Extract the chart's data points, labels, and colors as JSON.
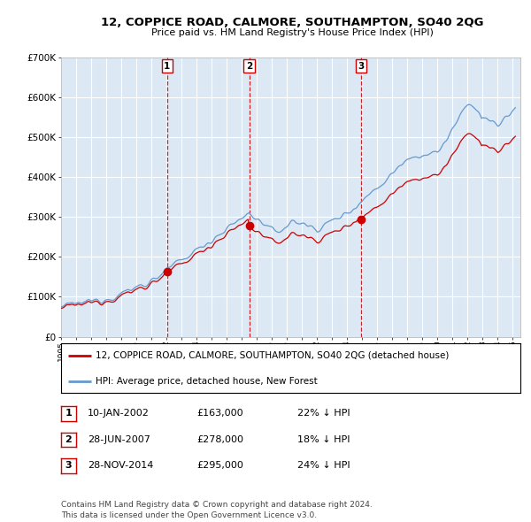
{
  "title": "12, COPPICE ROAD, CALMORE, SOUTHAMPTON, SO40 2QG",
  "subtitle": "Price paid vs. HM Land Registry's House Price Index (HPI)",
  "background_color": "#ffffff",
  "plot_bg_color": "#dce9f5",
  "grid_color": "#ffffff",
  "ylim": [
    0,
    700000
  ],
  "yticks": [
    0,
    100000,
    200000,
    300000,
    400000,
    500000,
    600000,
    700000
  ],
  "ytick_labels": [
    "£0",
    "£100K",
    "£200K",
    "£300K",
    "£400K",
    "£500K",
    "£600K",
    "£700K"
  ],
  "xlim_start": 1995.0,
  "xlim_end": 2025.5,
  "hpi_color": "#6699cc",
  "price_color": "#cc0000",
  "vline_color": "#cc0000",
  "transactions": [
    {
      "num": 1,
      "date_num": 2002.04,
      "price": 163000,
      "date_str": "10-JAN-2002",
      "price_str": "£163,000",
      "pct_str": "22% ↓ HPI"
    },
    {
      "num": 2,
      "date_num": 2007.49,
      "price": 278000,
      "date_str": "28-JUN-2007",
      "price_str": "£278,000",
      "pct_str": "18% ↓ HPI"
    },
    {
      "num": 3,
      "date_num": 2014.91,
      "price": 295000,
      "date_str": "28-NOV-2014",
      "price_str": "£295,000",
      "pct_str": "24% ↓ HPI"
    }
  ],
  "legend_price_label": "12, COPPICE ROAD, CALMORE, SOUTHAMPTON, SO40 2QG (detached house)",
  "legend_hpi_label": "HPI: Average price, detached house, New Forest",
  "footnote": "Contains HM Land Registry data © Crown copyright and database right 2024.\nThis data is licensed under the Open Government Licence v3.0."
}
